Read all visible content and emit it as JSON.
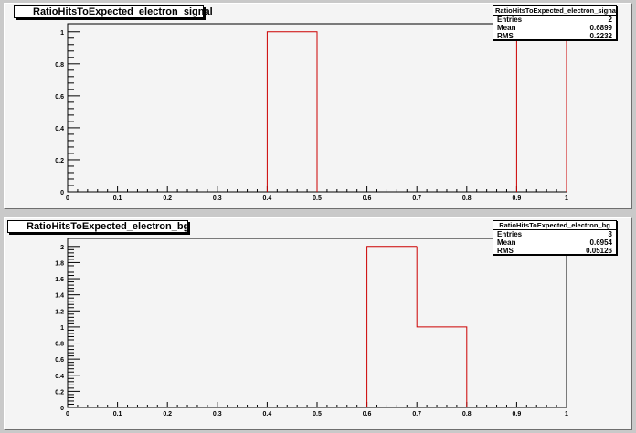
{
  "chart_data": [
    {
      "type": "histogram",
      "title": "RatioHitsToExpected_electron_signal",
      "x_range": [
        0,
        1
      ],
      "y_range": [
        0,
        1.05
      ],
      "x_ticks": [
        0,
        0.1,
        0.2,
        0.3,
        0.4,
        0.5,
        0.6,
        0.7,
        0.8,
        0.9,
        1
      ],
      "x_tick_labels": [
        "0",
        "0.1",
        "0.2",
        "0.3",
        "0.4",
        "0.5",
        "0.6",
        "0.7",
        "0.8",
        "0.9",
        "1"
      ],
      "y_ticks": [
        0,
        0.2,
        0.4,
        0.6,
        0.8,
        1
      ],
      "y_tick_labels": [
        "0",
        "0.2",
        "0.4",
        "0.6",
        "0.8",
        "1"
      ],
      "bins": [
        {
          "low": 0.4,
          "high": 0.5,
          "content": 1
        },
        {
          "low": 0.9,
          "high": 1.0,
          "content": 1
        }
      ],
      "line_color": "#cc0000",
      "stats": {
        "title": "RatioHitsToExpected_electron_signal",
        "rows": [
          {
            "label": "Entries",
            "value": "2"
          },
          {
            "label": "Mean",
            "value": "0.6899"
          },
          {
            "label": "RMS",
            "value": "0.2232"
          }
        ]
      }
    },
    {
      "type": "histogram",
      "title": "RatioHitsToExpected_electron_bg",
      "x_range": [
        0,
        1
      ],
      "y_range": [
        0,
        2.1
      ],
      "x_ticks": [
        0,
        0.1,
        0.2,
        0.3,
        0.4,
        0.5,
        0.6,
        0.7,
        0.8,
        0.9,
        1
      ],
      "x_tick_labels": [
        "0",
        "0.1",
        "0.2",
        "0.3",
        "0.4",
        "0.5",
        "0.6",
        "0.7",
        "0.8",
        "0.9",
        "1"
      ],
      "y_ticks": [
        0,
        0.2,
        0.4,
        0.6,
        0.8,
        1,
        1.2,
        1.4,
        1.6,
        1.8,
        2
      ],
      "y_tick_labels": [
        "0",
        "0.2",
        "0.4",
        "0.6",
        "0.8",
        "1",
        "1.2",
        "1.4",
        "1.6",
        "1.8",
        "2"
      ],
      "bins": [
        {
          "low": 0.6,
          "high": 0.7,
          "content": 2
        },
        {
          "low": 0.7,
          "high": 0.8,
          "content": 1
        }
      ],
      "line_color": "#cc0000",
      "stats": {
        "title": "RatioHitsToExpected_electron_bg",
        "rows": [
          {
            "label": "Entries",
            "value": "3"
          },
          {
            "label": "Mean",
            "value": "0.6954"
          },
          {
            "label": "RMS",
            "value": "0.05126"
          }
        ]
      }
    }
  ]
}
